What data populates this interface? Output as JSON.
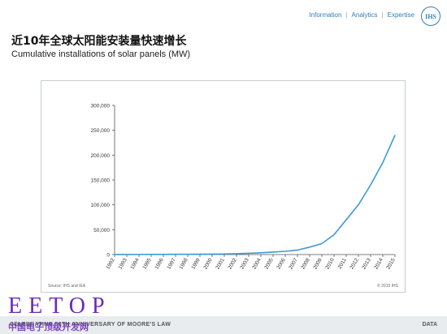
{
  "nav": {
    "items": [
      "Information",
      "Analytics",
      "Expertise"
    ],
    "separator": "|"
  },
  "logo_text": "IHS",
  "title_cn": "近10年全球太阳能安装量快速增长",
  "title_en": "Cumulative installations of solar panels (MW)",
  "source": "Source: IHS and IEA",
  "copyright": "© 2015 IHS",
  "watermark": "EETOP",
  "watermark_cn": "中国电子顶级开发网",
  "footer": {
    "left": "CELEBRATING 50TH ANNIVERSARY OF MOORE'S LAW",
    "right": "DATA"
  },
  "colors": {
    "line": "#3c9ad3",
    "accent": "#2f7fb5",
    "watermark": "#6b2bb6"
  },
  "chart_data": {
    "type": "line",
    "title": "",
    "xlabel": "",
    "ylabel": "",
    "ylim": [
      0,
      300000
    ],
    "yticks": [
      0,
      50000,
      100000,
      150000,
      200000,
      250000,
      300000
    ],
    "ytick_labels": [
      "0",
      "50,000",
      "100,000",
      "150,000",
      "200,000",
      "250,000",
      "300,000"
    ],
    "categories": [
      "1992",
      "1993",
      "1994",
      "1995",
      "1996",
      "1997",
      "1998",
      "1999",
      "2000",
      "2001",
      "2002",
      "2003",
      "2004",
      "2005",
      "2006",
      "2007",
      "2008",
      "2009",
      "2010",
      "2011",
      "2012",
      "2013",
      "2014",
      "2015"
    ],
    "series": [
      {
        "name": "",
        "values": [
          100,
          150,
          200,
          300,
          350,
          450,
          550,
          700,
          900,
          1200,
          1700,
          2500,
          3500,
          5000,
          6500,
          9000,
          15000,
          22000,
          40000,
          70000,
          100000,
          140000,
          185000,
          240000
        ]
      }
    ],
    "grid": false,
    "legend": "none"
  }
}
